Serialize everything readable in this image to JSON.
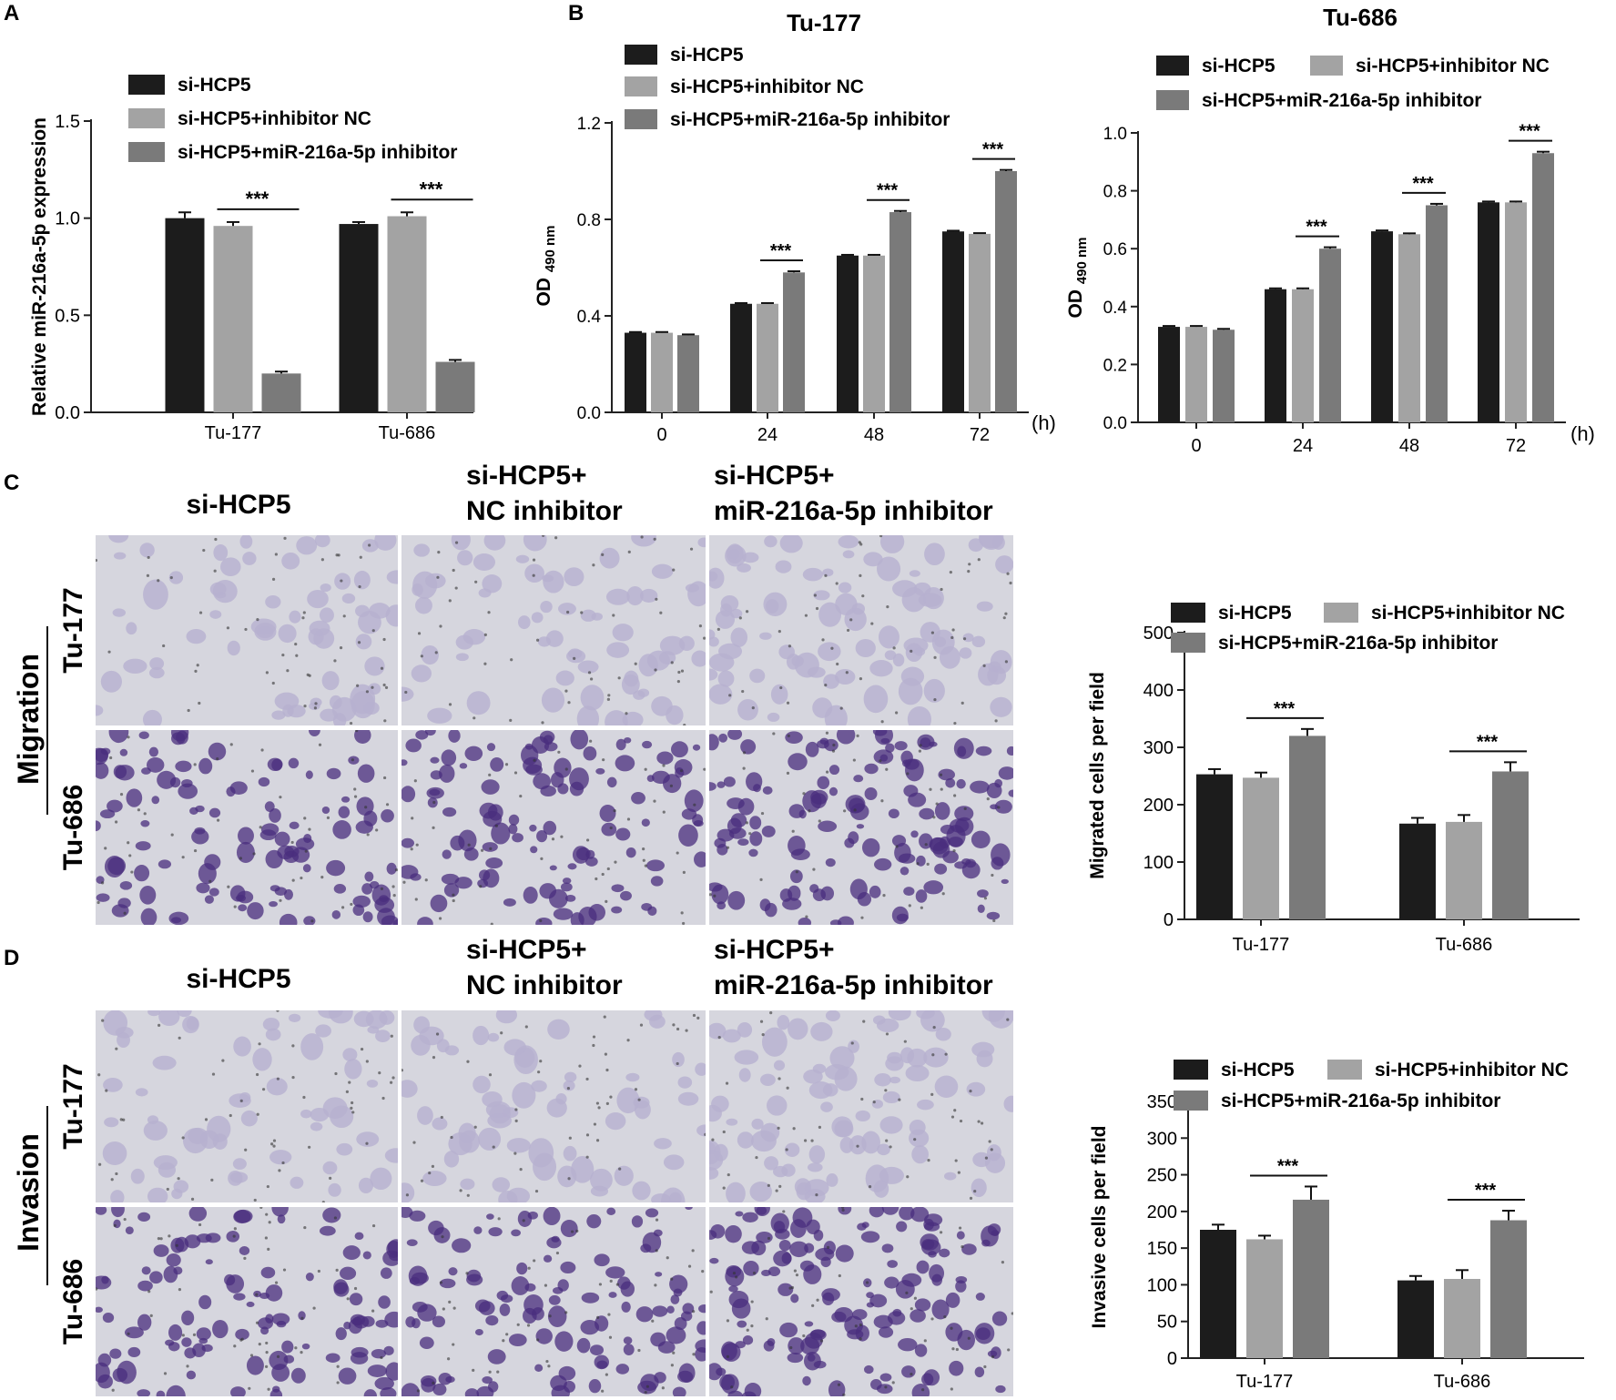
{
  "panel_letters": [
    "A",
    "B",
    "C",
    "D"
  ],
  "colors": {
    "s1": "#1c1c1c",
    "s2": "#a3a3a3",
    "s3": "#7a7a7a",
    "stain_light": "#b6b0cf",
    "stain_dark": "#4a2d7e",
    "micro_bg": "#d6d6de"
  },
  "series_names": [
    "si-HCP5",
    "si-HCP5+inhibitor NC",
    "si-HCP5+miR-216a-5p inhibitor"
  ],
  "significance": "***",
  "hour_unit": "(h)",
  "od_label": {
    "main": "OD",
    "sub": "490 nm"
  },
  "micro_c": {
    "col_labels": [
      [
        "si-HCP5"
      ],
      [
        "si-HCP5+",
        "NC inhibitor"
      ],
      [
        "si-HCP5+",
        "miR-216a-5p inhibitor"
      ]
    ],
    "row_labels": [
      "Tu-177",
      "Tu-686"
    ],
    "group_label": "Migration",
    "density": [
      [
        1,
        1,
        2
      ],
      [
        3,
        3,
        4
      ]
    ]
  },
  "micro_d": {
    "col_labels": [
      [
        "si-HCP5"
      ],
      [
        "si-HCP5+",
        "NC inhibitor"
      ],
      [
        "si-HCP5+",
        "miR-216a-5p inhibitor"
      ]
    ],
    "row_labels": [
      "Tu-177",
      "Tu-686"
    ],
    "group_label": "Invasion",
    "density": [
      [
        1,
        1,
        2
      ],
      [
        3,
        3,
        4
      ]
    ]
  },
  "chart_data": [
    {
      "panel": "A",
      "type": "bar",
      "title": "",
      "xlabel": "",
      "ylabel": "Relative miR-216a-5p expression",
      "categories": [
        "Tu-177",
        "Tu-686"
      ],
      "ylim": [
        0,
        1.5
      ],
      "yticks": [
        0.0,
        0.5,
        1.0,
        1.5
      ],
      "tick_decimals": 1,
      "series": [
        {
          "name": "si-HCP5",
          "values": [
            1.0,
            0.97
          ],
          "errors": [
            0.03,
            0.01
          ]
        },
        {
          "name": "si-HCP5+inhibitor NC",
          "values": [
            0.96,
            1.01
          ],
          "errors": [
            0.02,
            0.02
          ]
        },
        {
          "name": "si-HCP5+miR-216a-5p inhibitor",
          "values": [
            0.2,
            0.26
          ],
          "errors": [
            0.01,
            0.01
          ]
        }
      ],
      "significance": [
        {
          "category": 0,
          "between": [
            1,
            2
          ],
          "label": "***"
        },
        {
          "category": 1,
          "between": [
            1,
            2
          ],
          "label": "***"
        }
      ],
      "legend_position": "top"
    },
    {
      "panel": "B",
      "type": "bar",
      "title": "Tu-177",
      "xlabel": "(h)",
      "ylabel": "OD 490 nm",
      "categories": [
        "0",
        "24",
        "48",
        "72"
      ],
      "ylim": [
        0,
        1.2
      ],
      "yticks": [
        0.0,
        0.4,
        0.8,
        1.2
      ],
      "tick_decimals": 1,
      "series": [
        {
          "name": "si-HCP5",
          "values": [
            0.33,
            0.45,
            0.65,
            0.75
          ],
          "errors": [
            0.003,
            0.003,
            0.003,
            0.003
          ]
        },
        {
          "name": "si-HCP5+inhibitor NC",
          "values": [
            0.33,
            0.45,
            0.65,
            0.74
          ],
          "errors": [
            0.003,
            0.003,
            0.003,
            0.003
          ]
        },
        {
          "name": "si-HCP5+miR-216a-5p inhibitor",
          "values": [
            0.32,
            0.58,
            0.83,
            1.0
          ],
          "errors": [
            0.003,
            0.005,
            0.005,
            0.005
          ]
        }
      ],
      "significance": [
        {
          "category": 1,
          "between": [
            1,
            2
          ],
          "label": "***"
        },
        {
          "category": 2,
          "between": [
            1,
            2
          ],
          "label": "***"
        },
        {
          "category": 3,
          "between": [
            1,
            2
          ],
          "label": "***"
        }
      ],
      "legend_position": "top-left"
    },
    {
      "panel": "B",
      "type": "bar",
      "title": "Tu-686",
      "xlabel": "(h)",
      "ylabel": "OD 490 nm",
      "categories": [
        "0",
        "24",
        "48",
        "72"
      ],
      "ylim": [
        0,
        1.0
      ],
      "yticks": [
        0.0,
        0.2,
        0.4,
        0.6,
        0.8,
        1.0
      ],
      "tick_decimals": 1,
      "series": [
        {
          "name": "si-HCP5",
          "values": [
            0.33,
            0.46,
            0.66,
            0.76
          ],
          "errors": [
            0.003,
            0.003,
            0.003,
            0.003
          ]
        },
        {
          "name": "si-HCP5+inhibitor NC",
          "values": [
            0.33,
            0.46,
            0.65,
            0.76
          ],
          "errors": [
            0.003,
            0.003,
            0.003,
            0.003
          ]
        },
        {
          "name": "si-HCP5+miR-216a-5p inhibitor",
          "values": [
            0.32,
            0.6,
            0.75,
            0.93
          ],
          "errors": [
            0.003,
            0.005,
            0.005,
            0.005
          ]
        }
      ],
      "significance": [
        {
          "category": 1,
          "between": [
            1,
            2
          ],
          "label": "***"
        },
        {
          "category": 2,
          "between": [
            1,
            2
          ],
          "label": "***"
        },
        {
          "category": 3,
          "between": [
            1,
            2
          ],
          "label": "***"
        }
      ],
      "legend_position": "top"
    },
    {
      "panel": "C",
      "type": "bar",
      "title": "",
      "xlabel": "",
      "ylabel": "Migrated cells per field",
      "categories": [
        "Tu-177",
        "Tu-686"
      ],
      "ylim": [
        0,
        500
      ],
      "yticks": [
        0,
        100,
        200,
        300,
        400,
        500
      ],
      "tick_decimals": 0,
      "series": [
        {
          "name": "si-HCP5",
          "values": [
            253,
            167
          ],
          "errors": [
            9,
            10
          ]
        },
        {
          "name": "si-HCP5+inhibitor NC",
          "values": [
            247,
            170
          ],
          "errors": [
            9,
            12
          ]
        },
        {
          "name": "si-HCP5+miR-216a-5p inhibitor",
          "values": [
            320,
            258
          ],
          "errors": [
            12,
            16
          ]
        }
      ],
      "significance": [
        {
          "category": 0,
          "between": [
            1,
            2
          ],
          "label": "***"
        },
        {
          "category": 1,
          "between": [
            1,
            2
          ],
          "label": "***"
        }
      ],
      "legend_position": "top"
    },
    {
      "panel": "D",
      "type": "bar",
      "title": "",
      "xlabel": "",
      "ylabel": "Invasive cells per field",
      "categories": [
        "Tu-177",
        "Tu-686"
      ],
      "ylim": [
        0,
        350
      ],
      "yticks": [
        0,
        50,
        100,
        150,
        200,
        250,
        300,
        350
      ],
      "tick_decimals": 0,
      "series": [
        {
          "name": "si-HCP5",
          "values": [
            175,
            106
          ],
          "errors": [
            7,
            6
          ]
        },
        {
          "name": "si-HCP5+inhibitor NC",
          "values": [
            162,
            108
          ],
          "errors": [
            5,
            12
          ]
        },
        {
          "name": "si-HCP5+miR-216a-5p inhibitor",
          "values": [
            216,
            188
          ],
          "errors": [
            18,
            13
          ]
        }
      ],
      "significance": [
        {
          "category": 0,
          "between": [
            1,
            2
          ],
          "label": "***"
        },
        {
          "category": 1,
          "between": [
            1,
            2
          ],
          "label": "***"
        }
      ],
      "legend_position": "top"
    }
  ]
}
